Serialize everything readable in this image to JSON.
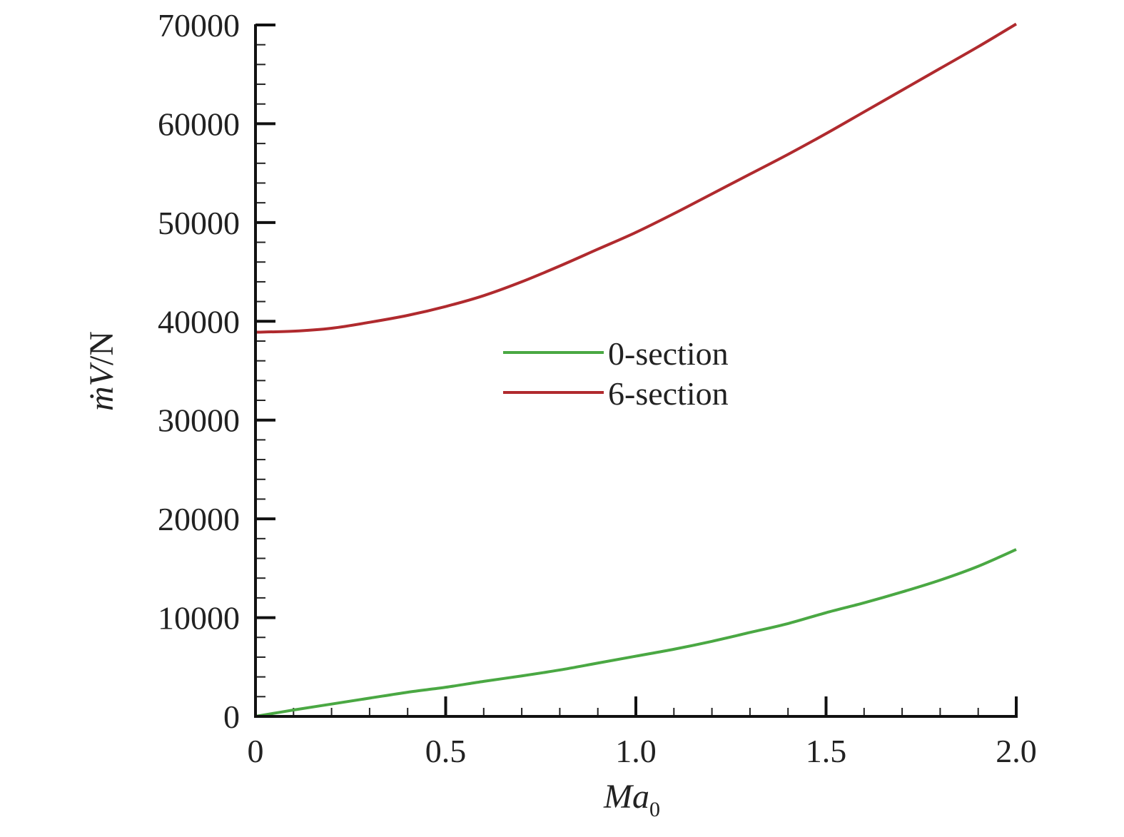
{
  "chart_data": {
    "type": "line",
    "xlabel": {
      "main": "Ma",
      "sub": "0"
    },
    "ylabel": {
      "symbol": "ṁV",
      "unit": "/N"
    },
    "xlim": [
      0,
      2.0
    ],
    "ylim": [
      0,
      70000
    ],
    "x_ticks": [
      0,
      0.5,
      1.0,
      1.5,
      2.0
    ],
    "x_tick_labels": [
      "0",
      "0.5",
      "1.0",
      "1.5",
      "2.0"
    ],
    "y_ticks": [
      0,
      10000,
      20000,
      30000,
      40000,
      50000,
      60000,
      70000
    ],
    "y_tick_labels": [
      "0",
      "10000",
      "20000",
      "30000",
      "40000",
      "50000",
      "60000",
      "70000"
    ],
    "x_minor_step": 0.1,
    "y_minor_step": 2000,
    "grid": false,
    "legend_position": "center",
    "series": [
      {
        "name": "0-section",
        "color": "#4aa843",
        "x": [
          0,
          0.1,
          0.2,
          0.3,
          0.4,
          0.5,
          0.6,
          0.7,
          0.8,
          0.9,
          1.0,
          1.1,
          1.2,
          1.3,
          1.4,
          1.5,
          1.6,
          1.7,
          1.8,
          1.9,
          2.0
        ],
        "y": [
          0,
          650,
          1250,
          1850,
          2450,
          2950,
          3550,
          4100,
          4700,
          5400,
          6100,
          6800,
          7600,
          8500,
          9400,
          10500,
          11500,
          12600,
          13800,
          15200,
          16900
        ]
      },
      {
        "name": "6-section",
        "color": "#b02a2e",
        "x": [
          0,
          0.1,
          0.2,
          0.3,
          0.4,
          0.5,
          0.6,
          0.7,
          0.8,
          0.9,
          1.0,
          1.1,
          1.2,
          1.3,
          1.4,
          1.5,
          1.6,
          1.7,
          1.8,
          1.9,
          2.0
        ],
        "y": [
          38900,
          39000,
          39300,
          39900,
          40600,
          41500,
          42600,
          44000,
          45600,
          47300,
          49000,
          50900,
          52900,
          54900,
          56900,
          59000,
          61200,
          63400,
          65600,
          67800,
          70100
        ]
      }
    ]
  }
}
